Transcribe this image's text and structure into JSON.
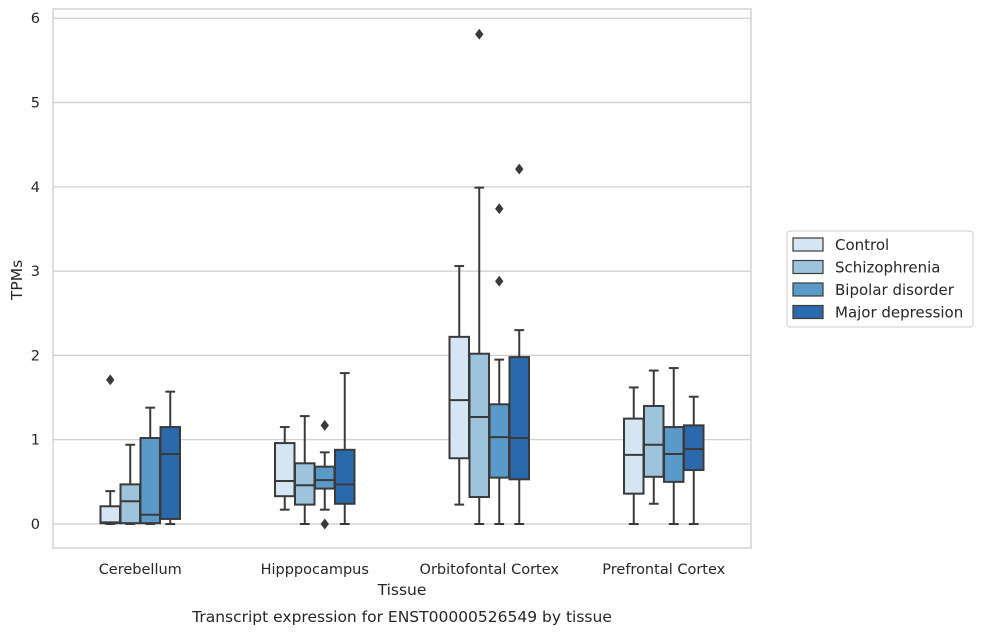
{
  "chart_data": {
    "type": "box",
    "title": "",
    "caption": "Transcript expression for ENST00000526549 by tissue",
    "xlabel": "Tissue",
    "ylabel": "TPMs",
    "ylim": [
      -0.28,
      6.1
    ],
    "yticks": [
      0,
      1,
      2,
      3,
      4,
      5,
      6
    ],
    "grid": "horizontal",
    "legend_position": "right",
    "categories": [
      "Cerebellum",
      "Hipppocampus",
      "Orbitofontal Cortex",
      "Prefrontal Cortex"
    ],
    "series": [
      {
        "name": "Control",
        "color": "#d6e5f3",
        "boxes": [
          {
            "whisker_low": 0.0,
            "q1": 0.01,
            "median": 0.02,
            "q3": 0.21,
            "whisker_high": 0.39,
            "outliers": [
              1.71
            ]
          },
          {
            "whisker_low": 0.17,
            "q1": 0.33,
            "median": 0.51,
            "q3": 0.96,
            "whisker_high": 1.15,
            "outliers": []
          },
          {
            "whisker_low": 0.23,
            "q1": 0.78,
            "median": 1.47,
            "q3": 2.22,
            "whisker_high": 3.06,
            "outliers": []
          },
          {
            "whisker_low": 0.0,
            "q1": 0.36,
            "median": 0.82,
            "q3": 1.25,
            "whisker_high": 1.62,
            "outliers": []
          }
        ]
      },
      {
        "name": "Schizophrenia",
        "color": "#9ec4dd",
        "boxes": [
          {
            "whisker_low": 0.0,
            "q1": 0.01,
            "median": 0.27,
            "q3": 0.47,
            "whisker_high": 0.94,
            "outliers": []
          },
          {
            "whisker_low": 0.0,
            "q1": 0.23,
            "median": 0.46,
            "q3": 0.72,
            "whisker_high": 1.28,
            "outliers": []
          },
          {
            "whisker_low": 0.0,
            "q1": 0.32,
            "median": 1.27,
            "q3": 2.02,
            "whisker_high": 3.99,
            "outliers": [
              5.81
            ]
          },
          {
            "whisker_low": 0.24,
            "q1": 0.56,
            "median": 0.94,
            "q3": 1.4,
            "whisker_high": 1.82,
            "outliers": []
          }
        ]
      },
      {
        "name": "Bipolar disorder",
        "color": "#5a9ac8",
        "boxes": [
          {
            "whisker_low": 0.0,
            "q1": 0.01,
            "median": 0.11,
            "q3": 1.02,
            "whisker_high": 1.38,
            "outliers": []
          },
          {
            "whisker_low": 0.17,
            "q1": 0.42,
            "median": 0.52,
            "q3": 0.68,
            "whisker_high": 0.85,
            "outliers": [
              0.0,
              1.17
            ]
          },
          {
            "whisker_low": 0.0,
            "q1": 0.55,
            "median": 1.03,
            "q3": 1.42,
            "whisker_high": 1.95,
            "outliers": [
              2.88,
              3.74
            ]
          },
          {
            "whisker_low": 0.0,
            "q1": 0.5,
            "median": 0.83,
            "q3": 1.15,
            "whisker_high": 1.85,
            "outliers": []
          }
        ]
      },
      {
        "name": "Major depression",
        "color": "#2a6aac",
        "boxes": [
          {
            "whisker_low": 0.0,
            "q1": 0.06,
            "median": 0.83,
            "q3": 1.15,
            "whisker_high": 1.57,
            "outliers": []
          },
          {
            "whisker_low": 0.0,
            "q1": 0.24,
            "median": 0.47,
            "q3": 0.88,
            "whisker_high": 1.79,
            "outliers": []
          },
          {
            "whisker_low": 0.0,
            "q1": 0.53,
            "median": 1.02,
            "q3": 1.98,
            "whisker_high": 2.3,
            "outliers": [
              4.21
            ]
          },
          {
            "whisker_low": 0.0,
            "q1": 0.64,
            "median": 0.89,
            "q3": 1.17,
            "whisker_high": 1.51,
            "outliers": []
          }
        ]
      }
    ]
  }
}
